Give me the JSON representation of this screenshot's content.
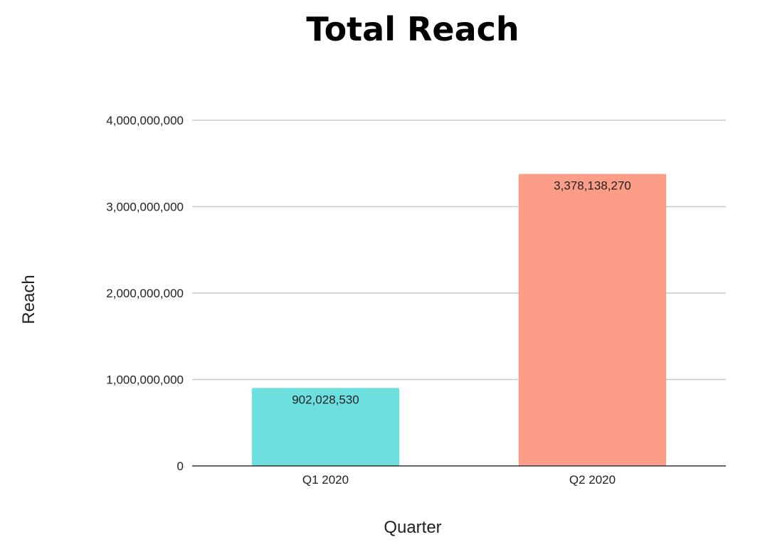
{
  "chart_data": {
    "type": "bar",
    "title": "Total Reach",
    "xlabel": "Quarter",
    "ylabel": "Reach",
    "categories": [
      "Q1 2020",
      "Q2 2020"
    ],
    "values": [
      902028530,
      3378138270
    ],
    "value_labels": [
      "902,028,530",
      "3,378,138,270"
    ],
    "bar_colors": [
      "#6ddfdf",
      "#fc9d88"
    ],
    "ylim": [
      0,
      4000000000
    ],
    "yticks": [
      0,
      1000000000,
      2000000000,
      3000000000,
      4000000000
    ],
    "ytick_labels": [
      "0",
      "1,000,000,000",
      "2,000,000,000",
      "3,000,000,000",
      "4,000,000,000"
    ],
    "grid": true,
    "legend": "none"
  }
}
